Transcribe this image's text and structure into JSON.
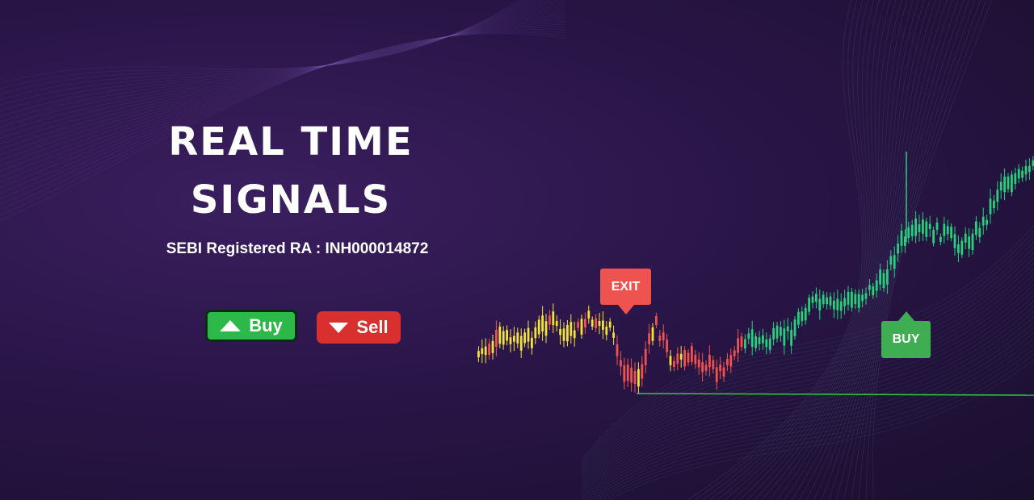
{
  "hero": {
    "title_line1": "REAL TIME",
    "title_line2": "SIGNALS",
    "subtitle": "SEBI Registered RA : INH000014872"
  },
  "buttons": {
    "buy_label": "Buy",
    "sell_label": "Sell"
  },
  "signals": {
    "exit_label": "EXIT",
    "buy_label": "BUY"
  },
  "colors": {
    "background": "#2a1548",
    "buy_green": "#2db84a",
    "sell_red": "#d8302e",
    "candle_yellow": "#f2e33a",
    "candle_red": "#ef5350",
    "candle_green": "#26d07c",
    "support_line": "#2ecc40"
  },
  "icons": {
    "buy": "triangle-up-icon",
    "sell": "triangle-down-icon"
  }
}
